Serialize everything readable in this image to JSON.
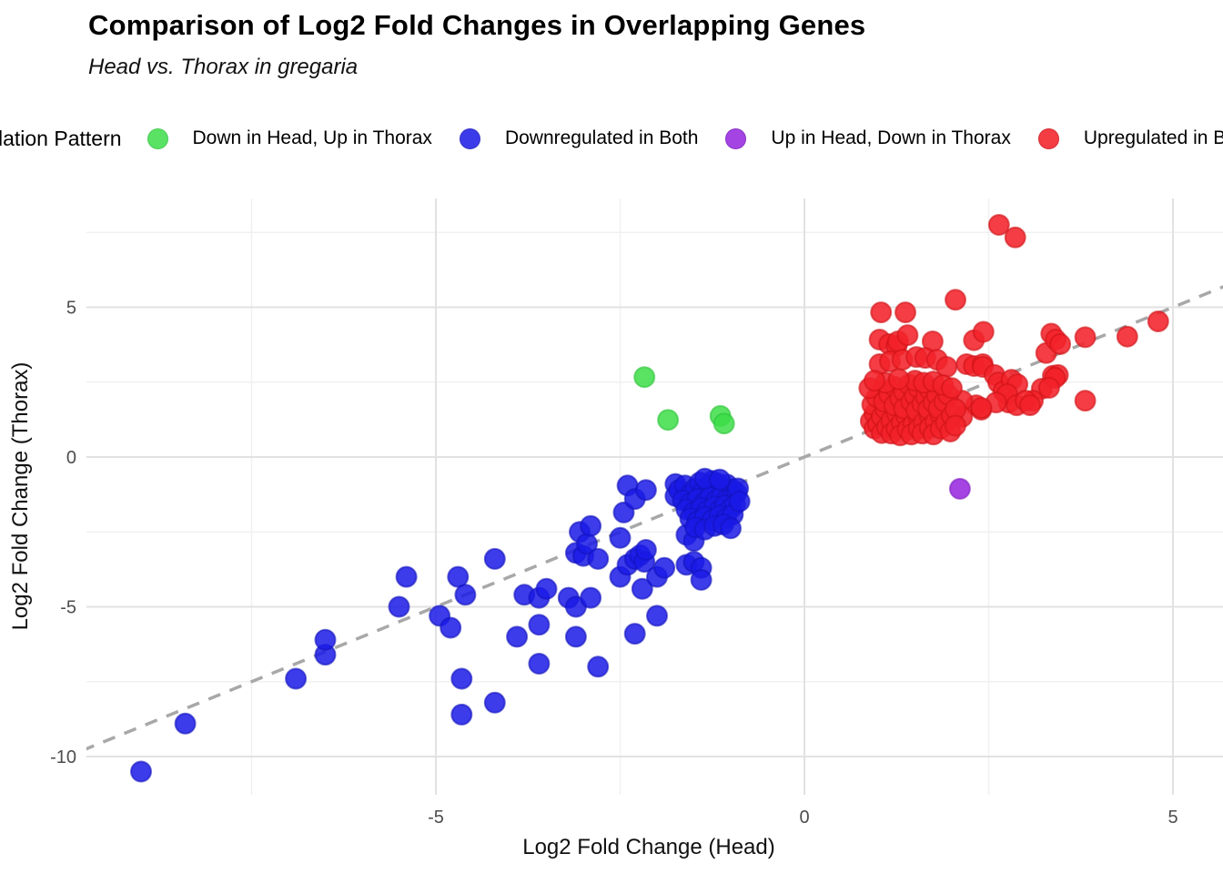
{
  "chart_data": {
    "type": "scatter",
    "title": "Comparison of Log2 Fold Changes in Overlapping Genes",
    "subtitle": "Head vs. Thorax in gregaria",
    "xlabel": "Log2 Fold Change (Head)",
    "ylabel": "Log2 Fold Change (Thorax)",
    "legend_title": "Regulation Pattern",
    "legend_position": "top",
    "grid": true,
    "xlim": [
      -9.7,
      5.7
    ],
    "ylim": [
      -11.4,
      8.65
    ],
    "x_major_ticks": [
      -5,
      0,
      5
    ],
    "x_minor_ticks": [
      -7.5,
      -2.5,
      2.5
    ],
    "y_major_ticks": [
      5,
      0,
      -5,
      -10
    ],
    "y_minor_ticks": [
      7.5,
      2.5,
      -2.5,
      -7.5
    ],
    "identity_line": {
      "equation": "y = x",
      "style": "dashed",
      "color": "#a8a8a8"
    },
    "series": [
      {
        "name": "Down in Head, Up in Thorax",
        "color": "#3ddd48",
        "stroke": "#2fc53b",
        "opacity": 0.85,
        "points": [
          [
            -2.17,
            2.67
          ],
          [
            -1.85,
            1.24
          ],
          [
            -1.14,
            1.37
          ],
          [
            -1.09,
            1.12
          ]
        ]
      },
      {
        "name": "Downregulated in Both",
        "color": "#1a1ae6",
        "stroke": "#1212bd",
        "opacity": 0.85,
        "points": [
          [
            -9.0,
            -10.5
          ],
          [
            -8.4,
            -8.9
          ],
          [
            -6.9,
            -7.4
          ],
          [
            -6.5,
            -6.6
          ],
          [
            -6.5,
            -6.1
          ],
          [
            -5.5,
            -5.0
          ],
          [
            -5.4,
            -4.0
          ],
          [
            -4.95,
            -5.3
          ],
          [
            -4.8,
            -5.7
          ],
          [
            -4.7,
            -4.0
          ],
          [
            -4.65,
            -7.4
          ],
          [
            -4.65,
            -8.6
          ],
          [
            -4.6,
            -4.6
          ],
          [
            -4.2,
            -3.4
          ],
          [
            -4.2,
            -8.2
          ],
          [
            -3.9,
            -6.0
          ],
          [
            -3.8,
            -4.6
          ],
          [
            -3.6,
            -4.7
          ],
          [
            -3.6,
            -5.6
          ],
          [
            -3.6,
            -6.9
          ],
          [
            -3.5,
            -4.4
          ],
          [
            -3.2,
            -4.7
          ],
          [
            -3.1,
            -5.0
          ],
          [
            -3.1,
            -6.0
          ],
          [
            -3.1,
            -3.2
          ],
          [
            -3.05,
            -2.5
          ],
          [
            -3.0,
            -3.3
          ],
          [
            -2.95,
            -2.9
          ],
          [
            -2.9,
            -4.7
          ],
          [
            -2.9,
            -2.3
          ],
          [
            -2.8,
            -3.4
          ],
          [
            -2.8,
            -7.0
          ],
          [
            -2.5,
            -2.7
          ],
          [
            -2.5,
            -4.0
          ],
          [
            -2.45,
            -1.85
          ],
          [
            -2.4,
            -0.95
          ],
          [
            -2.4,
            -3.6
          ],
          [
            -2.3,
            -1.4
          ],
          [
            -2.3,
            -3.4
          ],
          [
            -2.3,
            -5.9
          ],
          [
            -2.2,
            -4.4
          ],
          [
            -2.23,
            -3.28
          ],
          [
            -2.17,
            -3.5
          ],
          [
            -2.15,
            -1.1
          ],
          [
            -2.15,
            -3.1
          ],
          [
            -2.0,
            -4.0
          ],
          [
            -2.0,
            -5.3
          ],
          [
            -1.9,
            -3.7
          ],
          [
            -1.75,
            -0.9
          ],
          [
            -1.75,
            -1.3
          ],
          [
            -1.6,
            -2.6
          ],
          [
            -1.6,
            -3.6
          ],
          [
            -1.5,
            -2.8
          ],
          [
            -1.5,
            -3.5
          ],
          [
            -1.4,
            -3.7
          ],
          [
            -1.4,
            -4.1
          ],
          [
            -1.25,
            -0.8
          ],
          [
            -1.7,
            -1.1
          ],
          [
            -1.62,
            -0.95
          ],
          [
            -1.55,
            -1.25
          ],
          [
            -1.48,
            -1.05
          ],
          [
            -1.42,
            -0.85
          ],
          [
            -1.38,
            -1.18
          ],
          [
            -1.3,
            -0.95
          ],
          [
            -1.25,
            -1.1
          ],
          [
            -1.18,
            -0.88
          ],
          [
            -1.12,
            -1.02
          ],
          [
            -1.05,
            -0.92
          ],
          [
            -0.98,
            -1.08
          ],
          [
            -1.65,
            -1.45
          ],
          [
            -1.55,
            -1.55
          ],
          [
            -1.45,
            -1.4
          ],
          [
            -1.35,
            -1.5
          ],
          [
            -1.28,
            -1.35
          ],
          [
            -1.2,
            -1.45
          ],
          [
            -1.12,
            -1.3
          ],
          [
            -1.05,
            -1.42
          ],
          [
            -0.98,
            -1.35
          ],
          [
            -0.92,
            -1.2
          ],
          [
            -1.6,
            -1.75
          ],
          [
            -1.5,
            -1.85
          ],
          [
            -1.4,
            -1.7
          ],
          [
            -1.32,
            -1.8
          ],
          [
            -1.22,
            -1.65
          ],
          [
            -1.15,
            -1.78
          ],
          [
            -1.08,
            -1.62
          ],
          [
            -1.0,
            -1.72
          ],
          [
            -0.94,
            -1.58
          ],
          [
            -1.55,
            -2.05
          ],
          [
            -1.45,
            -2.15
          ],
          [
            -1.35,
            -2.0
          ],
          [
            -1.25,
            -2.1
          ],
          [
            -1.15,
            -1.95
          ],
          [
            -1.06,
            -2.05
          ],
          [
            -0.97,
            -1.92
          ],
          [
            -1.48,
            -2.35
          ],
          [
            -1.35,
            -2.42
          ],
          [
            -1.22,
            -2.3
          ],
          [
            -1.1,
            -2.25
          ],
          [
            -1.0,
            -2.38
          ],
          [
            -0.9,
            -1.05
          ],
          [
            -0.88,
            -1.48
          ],
          [
            -1.35,
            -0.72
          ],
          [
            -1.15,
            -0.75
          ]
        ]
      },
      {
        "name": "Up in Head, Down in Thorax",
        "color": "#9b30e0",
        "stroke": "#7e1fc0",
        "opacity": 0.9,
        "points": [
          [
            2.11,
            -1.06
          ]
        ]
      },
      {
        "name": "Upregulated in Both",
        "color": "#f3222a",
        "stroke": "#cf1218",
        "opacity": 0.88,
        "points": [
          [
            2.64,
            7.75
          ],
          [
            2.86,
            7.33
          ],
          [
            2.05,
            5.25
          ],
          [
            1.04,
            4.83
          ],
          [
            1.37,
            4.83
          ],
          [
            1.02,
            3.92
          ],
          [
            1.15,
            3.77
          ],
          [
            1.25,
            3.71
          ],
          [
            1.27,
            3.86
          ],
          [
            1.4,
            4.07
          ],
          [
            1.74,
            3.86
          ],
          [
            2.3,
            3.9
          ],
          [
            2.43,
            4.18
          ],
          [
            3.28,
            3.47
          ],
          [
            3.35,
            4.12
          ],
          [
            3.41,
            3.92
          ],
          [
            3.47,
            3.77
          ],
          [
            3.81,
            4.0
          ],
          [
            4.38,
            4.02
          ],
          [
            4.8,
            4.53
          ],
          [
            1.02,
            3.1
          ],
          [
            1.16,
            3.19
          ],
          [
            1.33,
            3.25
          ],
          [
            1.52,
            3.34
          ],
          [
            1.64,
            3.31
          ],
          [
            1.8,
            3.25
          ],
          [
            1.93,
            3.01
          ],
          [
            2.2,
            3.1
          ],
          [
            2.3,
            3.04
          ],
          [
            2.42,
            3.1
          ],
          [
            2.42,
            3.01
          ],
          [
            2.58,
            2.74
          ],
          [
            2.63,
            2.49
          ],
          [
            2.7,
            2.19
          ],
          [
            2.77,
            1.82
          ],
          [
            2.81,
            2.58
          ],
          [
            2.89,
            2.43
          ],
          [
            3.22,
            2.28
          ],
          [
            3.37,
            2.71
          ],
          [
            3.44,
            2.74
          ],
          [
            3.1,
            1.88
          ],
          [
            3.81,
            1.88
          ],
          [
            2.75,
            2.1
          ],
          [
            3.4,
            2.64
          ],
          [
            3.32,
            2.31
          ],
          [
            2.33,
            1.73
          ],
          [
            2.4,
            1.58
          ],
          [
            2.6,
            1.82
          ],
          [
            2.88,
            1.73
          ],
          [
            3.0,
            1.88
          ],
          [
            3.06,
            1.73
          ],
          [
            2.14,
            1.88
          ],
          [
            2.4,
            1.64
          ],
          [
            2.14,
            1.34
          ],
          [
            0.9,
            1.2
          ],
          [
            0.95,
            1.45
          ],
          [
            0.92,
            1.75
          ],
          [
            0.98,
            2.0
          ],
          [
            1.05,
            2.2
          ],
          [
            0.95,
            0.95
          ],
          [
            1.0,
            1.1
          ],
          [
            1.05,
            1.35
          ],
          [
            1.1,
            1.6
          ],
          [
            1.08,
            1.85
          ],
          [
            1.15,
            2.1
          ],
          [
            1.22,
            2.35
          ],
          [
            1.05,
            0.8
          ],
          [
            1.12,
            1.0
          ],
          [
            1.18,
            1.22
          ],
          [
            1.25,
            1.48
          ],
          [
            1.22,
            1.72
          ],
          [
            1.3,
            1.95
          ],
          [
            1.35,
            2.18
          ],
          [
            1.42,
            2.42
          ],
          [
            1.18,
            0.78
          ],
          [
            1.25,
            0.95
          ],
          [
            1.32,
            1.15
          ],
          [
            1.38,
            1.38
          ],
          [
            1.35,
            1.62
          ],
          [
            1.45,
            1.85
          ],
          [
            1.5,
            2.05
          ],
          [
            1.55,
            2.3
          ],
          [
            1.3,
            0.72
          ],
          [
            1.4,
            0.92
          ],
          [
            1.48,
            1.1
          ],
          [
            1.55,
            1.32
          ],
          [
            1.52,
            1.55
          ],
          [
            1.6,
            1.78
          ],
          [
            1.65,
            2.0
          ],
          [
            1.7,
            2.25
          ],
          [
            1.45,
            0.75
          ],
          [
            1.55,
            0.95
          ],
          [
            1.62,
            1.15
          ],
          [
            1.7,
            1.38
          ],
          [
            1.68,
            1.6
          ],
          [
            1.75,
            1.82
          ],
          [
            1.8,
            2.05
          ],
          [
            1.6,
            0.78
          ],
          [
            1.7,
            0.98
          ],
          [
            1.78,
            1.18
          ],
          [
            1.85,
            1.4
          ],
          [
            1.82,
            1.62
          ],
          [
            1.9,
            1.85
          ],
          [
            1.95,
            2.08
          ],
          [
            1.75,
            0.75
          ],
          [
            1.85,
            0.95
          ],
          [
            1.92,
            1.15
          ],
          [
            2.0,
            1.38
          ],
          [
            2.05,
            1.6
          ],
          [
            1.98,
            0.85
          ],
          [
            2.05,
            1.05
          ],
          [
            1.5,
            2.55
          ],
          [
            1.62,
            2.48
          ],
          [
            1.75,
            2.52
          ],
          [
            1.88,
            2.4
          ],
          [
            2.0,
            2.3
          ],
          [
            1.1,
            2.48
          ],
          [
            1.28,
            2.6
          ],
          [
            0.88,
            2.3
          ],
          [
            0.95,
            2.55
          ]
        ]
      }
    ]
  }
}
